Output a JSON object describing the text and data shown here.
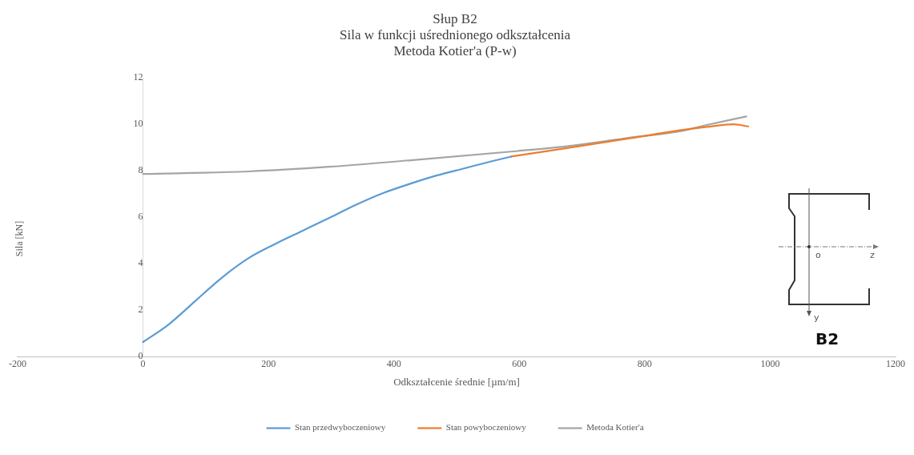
{
  "chart_data": {
    "type": "line",
    "title": "Słup B2",
    "subtitle": "Sila w funkcji uśrednionego odkształcenia\nMetoda Kotier'a (P-w)",
    "xlabel": "Odkształcenie średnie [µm/m]",
    "ylabel": "Sila [kN]",
    "series": [
      {
        "name": "Stan przedwyboczeniowy",
        "color": "#5b9bd5",
        "x": [
          0,
          39.5,
          82.5,
          125,
          168,
          211,
          254,
          297,
          340,
          383,
          426,
          469,
          512,
          555,
          587
        ],
        "values": [
          0.62,
          1.35,
          2.37,
          3.38,
          4.23,
          4.85,
          5.41,
          5.97,
          6.54,
          7.04,
          7.44,
          7.8,
          8.1,
          8.4,
          8.61
        ]
      },
      {
        "name": "Stan powyboczeniowy",
        "color": "#ed7d31",
        "x": [
          587,
          684,
          770,
          856,
          899,
          942,
          965
        ],
        "values": [
          8.61,
          9.01,
          9.37,
          9.74,
          9.89,
          10.0,
          9.91
        ]
      },
      {
        "name": "Metoda Kotier'a",
        "color": "#a5a5a5",
        "x": [
          0,
          168,
          297,
          426,
          598,
          684,
          770,
          856,
          899,
          962
        ],
        "values": [
          7.86,
          7.97,
          8.17,
          8.45,
          8.85,
          9.08,
          9.4,
          9.7,
          9.97,
          10.34
        ]
      }
    ],
    "xlim": [
      -200,
      1200
    ],
    "xticks": [
      -200,
      0,
      200,
      400,
      600,
      800,
      1000,
      1200
    ],
    "ylim": [
      0,
      12
    ],
    "yticks": [
      0,
      2,
      4,
      6,
      8,
      10,
      12
    ],
    "grid": false,
    "legend": "bottom",
    "marker": "none",
    "line_style": "solid",
    "annotations": [
      "o",
      "z",
      "y",
      "B2"
    ]
  }
}
